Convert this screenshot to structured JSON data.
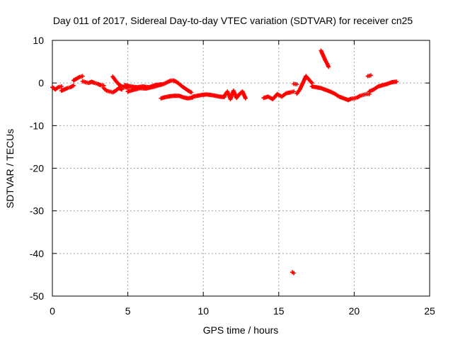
{
  "chart_data": {
    "type": "scatter",
    "title": "Day 011 of 2017, Sidereal Day-to-day VTEC variation (SDTVAR) for receiver cn25",
    "xlabel": "GPS time / hours",
    "ylabel": "SDTVAR / TECUs",
    "xlim": [
      0,
      25
    ],
    "ylim": [
      -50,
      10
    ],
    "xticks": [
      "0",
      "5",
      "10",
      "15",
      "20",
      "25"
    ],
    "yticks": [
      "10",
      "0",
      "-10",
      "-20",
      "-30",
      "-40",
      "-50"
    ],
    "grid": true,
    "marker": "plus",
    "color": "#ff0000",
    "segments": [
      {
        "x": [
          0.0,
          0.2,
          0.4,
          0.6
        ],
        "y": [
          -1.0,
          -1.5,
          -1.0,
          -0.8
        ]
      },
      {
        "x": [
          0.6,
          0.8,
          1.0,
          1.2,
          1.4
        ],
        "y": [
          -1.8,
          -1.5,
          -1.2,
          -1.0,
          -0.6
        ]
      },
      {
        "x": [
          1.4,
          1.6,
          1.8,
          2.0
        ],
        "y": [
          0.6,
          1.0,
          1.4,
          1.6
        ]
      },
      {
        "x": [
          2.0,
          2.2,
          2.4,
          2.6,
          2.8,
          3.0,
          3.2,
          3.4
        ],
        "y": [
          0.4,
          0.2,
          0.0,
          0.3,
          0.0,
          -0.2,
          -0.5,
          -0.6
        ]
      },
      {
        "x": [
          3.4,
          3.6,
          3.8,
          4.0,
          4.2,
          4.4,
          4.6
        ],
        "y": [
          -1.2,
          -1.8,
          -2.0,
          -2.2,
          -1.8,
          -1.2,
          -1.5
        ]
      },
      {
        "x": [
          4.0,
          4.2,
          4.4,
          4.6,
          4.8,
          5.0
        ],
        "y": [
          1.5,
          0.5,
          -0.3,
          -0.8,
          -1.0,
          -1.2
        ]
      },
      {
        "x": [
          4.8,
          5.2,
          5.6,
          6.0,
          6.4,
          6.8,
          7.2
        ],
        "y": [
          -0.5,
          -0.8,
          -1.0,
          -0.8,
          -1.0,
          -0.5,
          -0.3
        ]
      },
      {
        "x": [
          5.0,
          5.4,
          5.8,
          6.2,
          6.6,
          7.0,
          7.4,
          7.8
        ],
        "y": [
          -2.0,
          -1.6,
          -1.2,
          -1.3,
          -1.0,
          -0.6,
          -0.2,
          0.5
        ]
      },
      {
        "x": [
          7.8,
          8.0,
          8.2,
          8.4,
          8.6,
          8.8,
          9.0,
          9.2
        ],
        "y": [
          0.5,
          0.6,
          0.3,
          -0.2,
          -0.8,
          -1.3,
          -1.8,
          -2.2
        ]
      },
      {
        "x": [
          7.2,
          7.5,
          7.8,
          8.1,
          8.4,
          8.7,
          9.0,
          9.3
        ],
        "y": [
          -3.6,
          -3.3,
          -3.1,
          -3.0,
          -3.0,
          -3.4,
          -3.6,
          -3.4
        ]
      },
      {
        "x": [
          9.3,
          9.6,
          9.9,
          10.2,
          10.5,
          10.8,
          11.1,
          11.4
        ],
        "y": [
          -3.2,
          -3.0,
          -2.8,
          -2.7,
          -2.8,
          -3.0,
          -3.2,
          -3.3
        ]
      },
      {
        "x": [
          11.4,
          11.6,
          11.8,
          12.0,
          12.2,
          12.4,
          12.6,
          12.8
        ],
        "y": [
          -3.0,
          -2.0,
          -3.8,
          -1.8,
          -3.5,
          -2.6,
          -2.0,
          -3.6
        ]
      },
      {
        "x": [
          14.0,
          14.3,
          14.6,
          14.9,
          15.2,
          15.5,
          15.8,
          16.0
        ],
        "y": [
          -3.5,
          -3.2,
          -3.8,
          -2.6,
          -3.2,
          -2.4,
          -2.2,
          -2.0
        ]
      },
      {
        "x": [
          16.2,
          16.4,
          16.6,
          16.8,
          17.0,
          17.2
        ],
        "y": [
          -2.5,
          -1.5,
          0.0,
          1.6,
          0.8,
          0.0
        ]
      },
      {
        "x": [
          16.0,
          16.2
        ],
        "y": [
          -0.2,
          -0.3
        ]
      },
      {
        "x": [
          17.2,
          17.5,
          17.8,
          18.1,
          18.4,
          18.7,
          19.0,
          19.3,
          19.6
        ],
        "y": [
          -0.8,
          -1.0,
          -1.2,
          -1.6,
          -2.0,
          -2.5,
          -3.2,
          -3.6,
          -4.0
        ]
      },
      {
        "x": [
          17.8,
          17.9,
          18.0,
          18.1,
          18.2,
          18.3
        ],
        "y": [
          7.6,
          6.8,
          6.0,
          5.2,
          4.6,
          3.8
        ]
      },
      {
        "x": [
          19.6,
          19.8,
          20.0,
          20.2,
          20.4,
          20.6,
          20.8,
          21.0
        ],
        "y": [
          -4.0,
          -3.7,
          -3.6,
          -3.4,
          -3.0,
          -2.8,
          -2.6,
          -2.6
        ]
      },
      {
        "x": [
          21.0,
          21.3,
          21.6,
          21.9,
          22.2,
          22.5,
          22.8
        ],
        "y": [
          -2.0,
          -1.5,
          -0.8,
          -0.5,
          -0.2,
          0.2,
          0.3
        ]
      },
      {
        "x": [
          20.9,
          21.1
        ],
        "y": [
          1.6,
          1.8
        ]
      },
      {
        "x": [
          15.9,
          16.0
        ],
        "y": [
          -44.4,
          -44.6
        ]
      }
    ]
  }
}
